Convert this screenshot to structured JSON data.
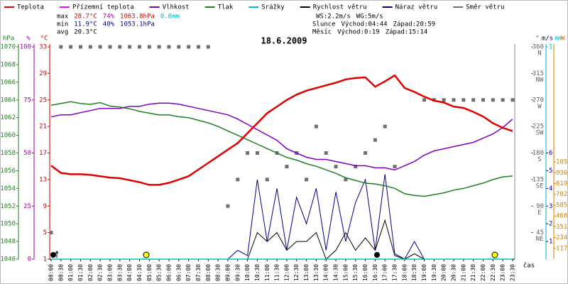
{
  "chart_data": {
    "type": "line",
    "title": "18.6.2009",
    "legend": [
      "Teplota",
      "Přízemní teplota",
      "Vlhkost",
      "Tlak",
      "Srážky",
      "Rychlost větru",
      "Náraz větru",
      "Směr větru"
    ],
    "stats": {
      "max": [
        "max",
        "28.7°C",
        "74%",
        "1063.8hPa",
        "0.0mm"
      ],
      "min": [
        "min",
        "11.9°C",
        "40%",
        "1053.1hPa"
      ],
      "avg": [
        "avg",
        "20.3°C"
      ],
      "wind": [
        "WS:2.2m/s",
        "WG:5m/s"
      ],
      "sun": [
        "Slunce",
        "Východ:04:44",
        "Západ:20:59"
      ],
      "moon": [
        "Měsíc",
        "Východ:0:19",
        "Západ:15:14"
      ]
    },
    "xlabel": "čas",
    "categories": [
      "00:00",
      "00:30",
      "01:00",
      "01:30",
      "02:00",
      "02:30",
      "03:00",
      "03:30",
      "04:00",
      "04:30",
      "05:00",
      "05:30",
      "06:00",
      "06:30",
      "07:00",
      "07:30",
      "08:00",
      "08:30",
      "09:00",
      "09:30",
      "10:00",
      "10:30",
      "11:00",
      "11:30",
      "12:00",
      "12:30",
      "13:00",
      "13:30",
      "14:00",
      "14:30",
      "15:00",
      "15:30",
      "16:00",
      "16:30",
      "17:00",
      "17:30",
      "18:00",
      "18:30",
      "19:00",
      "19:30",
      "20:00",
      "20:30",
      "21:00",
      "21:30",
      "22:00",
      "22:30",
      "23:00",
      "23:30"
    ],
    "axes": [
      {
        "name": "hPa",
        "color": "#208020",
        "lim": [
          1046,
          1070
        ],
        "ticks": [
          1046,
          1048,
          1050,
          1052,
          1054,
          1056,
          1058,
          1060,
          1062,
          1064,
          1066,
          1068,
          1070
        ]
      },
      {
        "name": "%",
        "color": "#a000a0",
        "lim": [
          0,
          100
        ],
        "ticks": [
          0,
          25,
          50,
          75,
          100
        ]
      },
      {
        "name": "°C",
        "color": "#d00000",
        "lim": [
          1,
          33
        ],
        "ticks": [
          1,
          5,
          9,
          13,
          17,
          21,
          25,
          29,
          33
        ]
      },
      {
        "name": "°",
        "color": "#606060",
        "lim": [
          0,
          360
        ],
        "ticks": [
          45,
          90,
          135,
          180,
          225,
          270,
          315,
          360
        ],
        "tick_notes": [
          "NE",
          "E",
          "SE",
          "S",
          "SW",
          "W",
          "NW",
          "N"
        ]
      },
      {
        "name": "m/s",
        "color": "#000080",
        "lim": [
          0,
          12
        ],
        "ticks": [
          1,
          2,
          3,
          4,
          5,
          6
        ]
      },
      {
        "name": "mm",
        "color": "#00b0c0",
        "lim": [
          0,
          1
        ],
        "ticks": [
          1
        ]
      },
      {
        "name": "W",
        "color": "#d08000",
        "lim": [
          0,
          2300
        ],
        "ticks": [
          117,
          234,
          351,
          468,
          585,
          702,
          819,
          936,
          1053
        ]
      }
    ],
    "series": [
      {
        "name": "Teplota",
        "color": "#e00000",
        "axis": "°C",
        "kind": "line",
        "width": 2.5,
        "values": [
          15.1,
          14.0,
          13.8,
          13.8,
          13.7,
          13.5,
          13.3,
          13.2,
          12.9,
          12.6,
          12.2,
          12.2,
          12.5,
          13.0,
          13.5,
          14.5,
          15.5,
          16.5,
          17.5,
          18.5,
          20.0,
          21.5,
          23.0,
          24.0,
          25.0,
          25.8,
          26.4,
          26.8,
          27.2,
          27.6,
          28.1,
          28.3,
          28.4,
          27.0,
          27.8,
          28.7,
          26.8,
          26.2,
          25.5,
          24.9,
          24.6,
          24.0,
          23.8,
          23.2,
          22.5,
          21.5,
          20.8,
          20.3
        ]
      },
      {
        "name": "Přízemní teplota",
        "color": "#ff00ff",
        "axis": "°C",
        "kind": "line",
        "width": 1.5,
        "values": [
          null,
          null,
          null,
          null,
          null,
          null,
          null,
          null,
          null,
          null,
          null,
          null,
          null,
          null,
          null,
          null,
          null,
          null,
          null,
          null,
          null,
          null,
          null,
          null,
          null,
          null,
          null,
          null,
          null,
          null,
          null,
          null,
          null,
          null,
          null,
          null,
          null,
          null,
          null,
          null,
          null,
          null,
          null,
          null,
          null,
          null,
          null,
          null
        ]
      },
      {
        "name": "Vlhkost",
        "color": "#8000c0",
        "axis": "%",
        "kind": "line",
        "width": 1.5,
        "values": [
          67,
          68,
          68,
          69,
          70,
          71,
          71,
          71,
          72,
          72,
          73,
          73.5,
          73.5,
          73,
          72,
          71,
          70,
          69,
          68,
          66,
          63.5,
          61,
          58.5,
          56,
          52,
          50,
          48,
          47,
          47,
          46,
          45,
          44,
          44,
          43,
          43,
          42,
          44,
          46,
          49,
          51,
          52,
          53,
          54,
          55,
          57,
          59,
          62,
          66
        ]
      },
      {
        "name": "Tlak",
        "color": "#208020",
        "axis": "hPa",
        "kind": "line",
        "width": 1.5,
        "values": [
          1063.4,
          1063.6,
          1063.8,
          1063.6,
          1063.5,
          1063.7,
          1063.3,
          1063.2,
          1063.0,
          1062.7,
          1062.5,
          1062.3,
          1062.3,
          1062.1,
          1062.0,
          1061.7,
          1061.4,
          1061.0,
          1060.5,
          1060.0,
          1059.5,
          1059.0,
          1058.5,
          1058.0,
          1057.5,
          1057.2,
          1056.8,
          1056.5,
          1056.1,
          1055.7,
          1055.2,
          1054.9,
          1054.6,
          1054.5,
          1054.3,
          1054.0,
          1053.4,
          1053.2,
          1053.1,
          1053.3,
          1053.5,
          1053.8,
          1054.0,
          1054.3,
          1054.6,
          1055.0,
          1055.3,
          1055.4
        ]
      },
      {
        "name": "Srážky",
        "color": "#00c0c0",
        "axis": "mm",
        "kind": "line",
        "width": 1.5,
        "values": [
          0,
          0,
          0,
          0,
          0,
          0,
          0,
          0,
          0,
          0,
          0,
          0,
          0,
          0,
          0,
          0,
          0,
          0,
          0,
          0,
          0,
          0,
          0,
          0,
          0,
          0,
          0,
          0,
          0,
          0,
          0,
          0,
          0,
          0,
          0,
          0,
          0,
          0,
          0,
          0,
          0,
          0,
          0,
          0,
          0,
          0,
          0,
          0
        ]
      },
      {
        "name": "Rychlost větru",
        "color": "#000000",
        "axis": "m/s",
        "kind": "line",
        "width": 1,
        "values": [
          0,
          0,
          0,
          0,
          0,
          0,
          0,
          0,
          0,
          0,
          0,
          0,
          0,
          0,
          0,
          0,
          0,
          0,
          0,
          0,
          0,
          1.5,
          1.0,
          1.5,
          0.5,
          1,
          1,
          1.5,
          0,
          0.5,
          1.5,
          0.5,
          1.2,
          0.5,
          2.2,
          0.2,
          0,
          0.3,
          0,
          0,
          0,
          0,
          0,
          0,
          0,
          0,
          0,
          0
        ]
      },
      {
        "name": "Náraz větru",
        "color": "#000080",
        "axis": "m/s",
        "kind": "line",
        "width": 1,
        "values": [
          0,
          0,
          0,
          0,
          0,
          0,
          0,
          0,
          0,
          0,
          0,
          0,
          0,
          0,
          0,
          0,
          0,
          0,
          0,
          0.5,
          0.2,
          4.5,
          1,
          4,
          0.5,
          3.5,
          2,
          4,
          0.5,
          3.8,
          1,
          3.2,
          4.5,
          0.5,
          4.8,
          0.3,
          0,
          1,
          0,
          0,
          0,
          0,
          0,
          0,
          0,
          0,
          0,
          0
        ]
      },
      {
        "name": "Směr větru",
        "color": "#707070",
        "axis": "°",
        "kind": "dots",
        "values": [
          45,
          360,
          360,
          360,
          360,
          360,
          360,
          360,
          360,
          360,
          360,
          360,
          360,
          360,
          360,
          360,
          360,
          null,
          90,
          135,
          180,
          180,
          135,
          180,
          157,
          180,
          135,
          225,
          180,
          157,
          135,
          157,
          180,
          202,
          225,
          157,
          null,
          null,
          270,
          270,
          270,
          270,
          270,
          270,
          270,
          270,
          270,
          270
        ]
      }
    ]
  }
}
